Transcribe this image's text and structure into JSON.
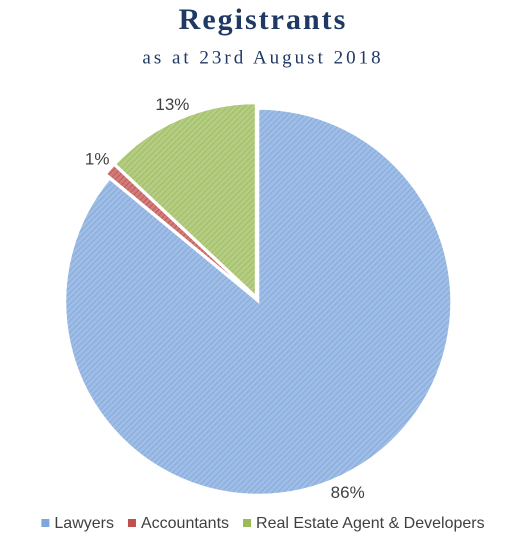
{
  "chart_data": {
    "type": "pie",
    "title": "Registrants",
    "subtitle": "as at 23rd August 2018",
    "categories": [
      "Lawyers",
      "Accountants",
      "Real Estate Agent & Developers"
    ],
    "values": [
      86,
      1,
      13
    ],
    "value_labels": [
      "86%",
      "1%",
      "13%"
    ],
    "colors": [
      "#7ea6dc",
      "#c0504d",
      "#9bbb59"
    ],
    "legend": "bottom"
  }
}
